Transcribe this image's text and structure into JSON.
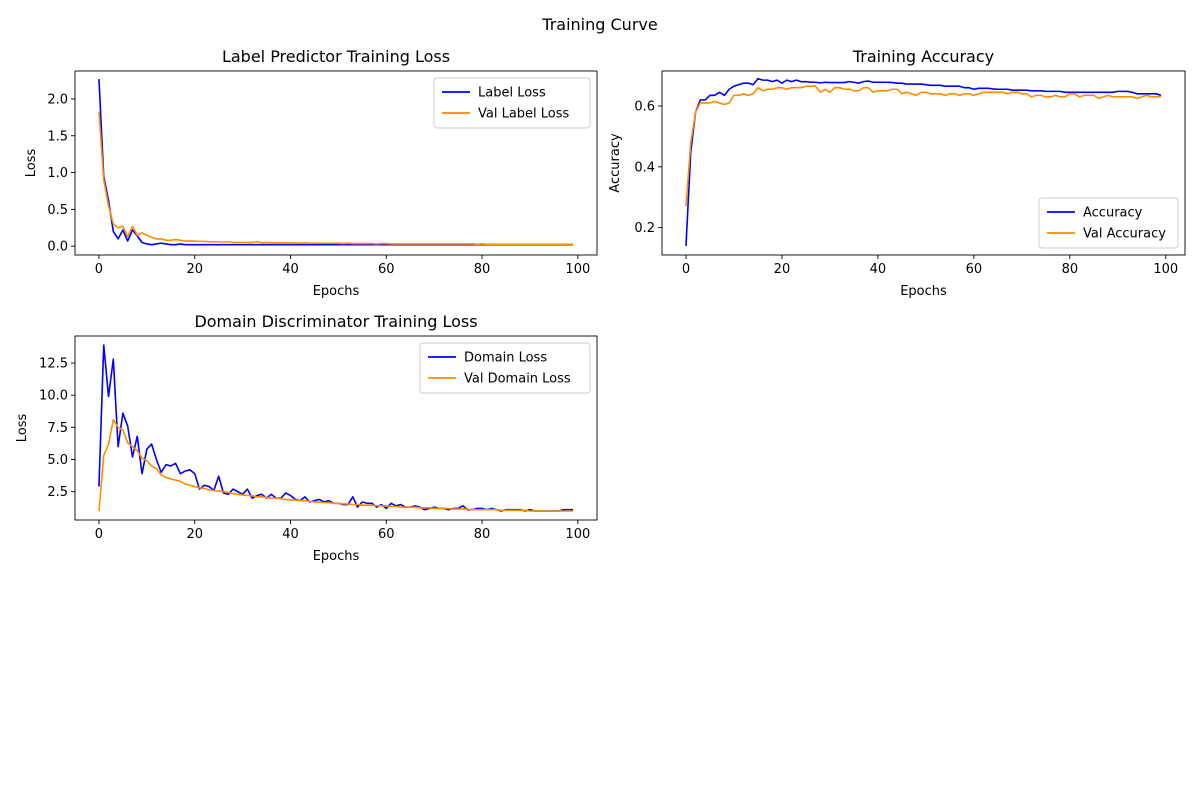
{
  "figure": {
    "suptitle": "Training Curve"
  },
  "colors": {
    "train": "#0000ff",
    "val": "#ff8c00"
  },
  "chart_data": [
    {
      "type": "line",
      "title": "Label Predictor Training Loss",
      "xlabel": "Epochs",
      "ylabel": "Loss",
      "xlim": [
        -5,
        104
      ],
      "ylim": [
        -0.12,
        2.38
      ],
      "xticks": [
        0,
        20,
        40,
        60,
        80,
        100
      ],
      "yticks": [
        0.0,
        0.5,
        1.0,
        1.5,
        2.0
      ],
      "ytick_labels": [
        "0.0",
        "0.5",
        "1.0",
        "1.5",
        "2.0"
      ],
      "legend_position": "top-right",
      "series": [
        {
          "name": "Label Loss",
          "color": "#0000ff",
          "x_step": 1,
          "values": [
            2.27,
            0.95,
            0.62,
            0.2,
            0.1,
            0.22,
            0.07,
            0.22,
            0.14,
            0.05,
            0.03,
            0.02,
            0.03,
            0.04,
            0.03,
            0.02,
            0.02,
            0.03,
            0.02,
            0.02,
            0.02,
            0.02,
            0.02,
            0.02,
            0.02,
            0.02,
            0.02,
            0.02,
            0.02,
            0.02,
            0.02,
            0.02,
            0.02,
            0.02,
            0.02,
            0.02,
            0.02,
            0.02,
            0.02,
            0.02,
            0.02,
            0.02,
            0.02,
            0.02,
            0.02,
            0.02,
            0.02,
            0.02,
            0.02,
            0.02,
            0.02,
            0.02,
            0.02,
            0.02,
            0.02,
            0.02,
            0.02,
            0.02,
            0.02,
            0.02,
            0.02,
            0.02,
            0.02,
            0.02,
            0.02,
            0.02,
            0.02,
            0.02,
            0.02,
            0.02,
            0.02,
            0.02,
            0.02,
            0.02,
            0.02,
            0.02,
            0.02,
            0.02,
            0.02,
            0.02,
            0.02,
            0.02,
            0.02,
            0.02,
            0.02,
            0.02,
            0.02,
            0.02,
            0.02,
            0.02,
            0.02,
            0.02,
            0.02,
            0.02,
            0.02,
            0.02,
            0.02,
            0.02,
            0.02,
            0.02
          ]
        },
        {
          "name": "Val Label Loss",
          "color": "#ff8c00",
          "x_step": 1,
          "values": [
            1.83,
            0.9,
            0.55,
            0.3,
            0.25,
            0.27,
            0.13,
            0.27,
            0.15,
            0.18,
            0.15,
            0.12,
            0.1,
            0.1,
            0.08,
            0.08,
            0.09,
            0.08,
            0.07,
            0.07,
            0.07,
            0.065,
            0.065,
            0.06,
            0.06,
            0.06,
            0.055,
            0.06,
            0.05,
            0.05,
            0.05,
            0.05,
            0.05,
            0.06,
            0.045,
            0.05,
            0.045,
            0.045,
            0.045,
            0.045,
            0.045,
            0.045,
            0.04,
            0.045,
            0.04,
            0.04,
            0.04,
            0.04,
            0.04,
            0.04,
            0.04,
            0.035,
            0.04,
            0.035,
            0.035,
            0.035,
            0.035,
            0.035,
            0.03,
            0.035,
            0.035,
            0.03,
            0.03,
            0.03,
            0.03,
            0.03,
            0.03,
            0.03,
            0.03,
            0.03,
            0.03,
            0.03,
            0.03,
            0.03,
            0.03,
            0.03,
            0.03,
            0.03,
            0.03,
            0.025,
            0.03,
            0.025,
            0.025,
            0.025,
            0.025,
            0.025,
            0.025,
            0.025,
            0.025,
            0.025,
            0.025,
            0.025,
            0.025,
            0.025,
            0.025,
            0.025,
            0.025,
            0.025,
            0.025,
            0.025
          ]
        }
      ]
    },
    {
      "type": "line",
      "title": "Training Accuracy",
      "xlabel": "Epochs",
      "ylabel": "Accuracy",
      "xlim": [
        -5,
        104
      ],
      "ylim": [
        0.11,
        0.715
      ],
      "xticks": [
        0,
        20,
        40,
        60,
        80,
        100
      ],
      "yticks": [
        0.2,
        0.4,
        0.6
      ],
      "ytick_labels": [
        "0.2",
        "0.4",
        "0.6"
      ],
      "legend_position": "lower-right",
      "series": [
        {
          "name": "Accuracy",
          "color": "#0000ff",
          "x_step": 1,
          "values": [
            0.14,
            0.45,
            0.58,
            0.62,
            0.62,
            0.635,
            0.635,
            0.645,
            0.635,
            0.655,
            0.665,
            0.67,
            0.675,
            0.675,
            0.67,
            0.69,
            0.685,
            0.685,
            0.68,
            0.685,
            0.675,
            0.685,
            0.68,
            0.685,
            0.68,
            0.68,
            0.678,
            0.678,
            0.676,
            0.678,
            0.677,
            0.677,
            0.677,
            0.677,
            0.68,
            0.678,
            0.675,
            0.68,
            0.682,
            0.678,
            0.678,
            0.678,
            0.678,
            0.677,
            0.675,
            0.675,
            0.672,
            0.672,
            0.672,
            0.672,
            0.67,
            0.668,
            0.668,
            0.668,
            0.665,
            0.665,
            0.665,
            0.665,
            0.66,
            0.66,
            0.655,
            0.658,
            0.658,
            0.658,
            0.656,
            0.655,
            0.655,
            0.655,
            0.652,
            0.652,
            0.652,
            0.652,
            0.65,
            0.65,
            0.65,
            0.648,
            0.648,
            0.648,
            0.648,
            0.645,
            0.645,
            0.645,
            0.645,
            0.645,
            0.645,
            0.645,
            0.645,
            0.645,
            0.645,
            0.645,
            0.648,
            0.648,
            0.648,
            0.645,
            0.64,
            0.64,
            0.64,
            0.64,
            0.64,
            0.635
          ]
        },
        {
          "name": "Val Accuracy",
          "color": "#ff8c00",
          "x_step": 1,
          "values": [
            0.27,
            0.48,
            0.58,
            0.61,
            0.61,
            0.61,
            0.615,
            0.61,
            0.605,
            0.61,
            0.635,
            0.635,
            0.64,
            0.635,
            0.64,
            0.66,
            0.65,
            0.655,
            0.655,
            0.66,
            0.66,
            0.655,
            0.66,
            0.66,
            0.66,
            0.665,
            0.665,
            0.665,
            0.645,
            0.655,
            0.645,
            0.66,
            0.66,
            0.655,
            0.655,
            0.65,
            0.65,
            0.66,
            0.66,
            0.645,
            0.65,
            0.65,
            0.65,
            0.655,
            0.655,
            0.64,
            0.645,
            0.64,
            0.635,
            0.645,
            0.645,
            0.64,
            0.64,
            0.64,
            0.635,
            0.64,
            0.64,
            0.635,
            0.64,
            0.64,
            0.635,
            0.64,
            0.645,
            0.645,
            0.645,
            0.645,
            0.645,
            0.64,
            0.645,
            0.645,
            0.64,
            0.64,
            0.63,
            0.635,
            0.635,
            0.63,
            0.63,
            0.635,
            0.63,
            0.63,
            0.64,
            0.64,
            0.63,
            0.635,
            0.635,
            0.635,
            0.625,
            0.63,
            0.635,
            0.63,
            0.63,
            0.63,
            0.63,
            0.63,
            0.625,
            0.63,
            0.635,
            0.63,
            0.63,
            0.63
          ]
        }
      ]
    },
    {
      "type": "line",
      "title": "Domain Discriminator Training Loss",
      "xlabel": "Epochs",
      "ylabel": "Loss",
      "xlim": [
        -5,
        104
      ],
      "ylim": [
        0.3,
        14.6
      ],
      "xticks": [
        0,
        20,
        40,
        60,
        80,
        100
      ],
      "yticks": [
        2.5,
        5.0,
        7.5,
        10.0,
        12.5
      ],
      "ytick_labels": [
        "2.5",
        "5.0",
        "7.5",
        "10.0",
        "12.5"
      ],
      "legend_position": "top-right",
      "series": [
        {
          "name": "Domain Loss",
          "color": "#0000ff",
          "x_step": 1,
          "values": [
            2.9,
            13.9,
            9.9,
            12.8,
            6.0,
            8.6,
            7.6,
            5.2,
            6.8,
            3.9,
            5.8,
            6.2,
            5.0,
            4.0,
            4.6,
            4.5,
            4.7,
            3.9,
            4.1,
            4.2,
            3.9,
            2.7,
            3.0,
            2.9,
            2.6,
            3.7,
            2.4,
            2.3,
            2.7,
            2.5,
            2.3,
            2.7,
            2.0,
            2.2,
            2.3,
            2.0,
            2.3,
            2.0,
            2.0,
            2.4,
            2.2,
            1.9,
            1.8,
            2.1,
            1.7,
            1.8,
            1.9,
            1.7,
            1.8,
            1.6,
            1.6,
            1.5,
            1.5,
            2.1,
            1.3,
            1.7,
            1.6,
            1.6,
            1.3,
            1.5,
            1.2,
            1.6,
            1.4,
            1.5,
            1.3,
            1.3,
            1.4,
            1.3,
            1.1,
            1.2,
            1.3,
            1.2,
            1.2,
            1.1,
            1.2,
            1.2,
            1.4,
            1.1,
            1.1,
            1.2,
            1.2,
            1.1,
            1.2,
            1.1,
            1.0,
            1.1,
            1.1,
            1.1,
            1.1,
            1.0,
            1.1,
            1.0,
            1.0,
            1.0,
            1.0,
            1.0,
            1.0,
            1.1,
            1.1,
            1.1
          ]
        },
        {
          "name": "Val Domain Loss",
          "color": "#ff8c00",
          "x_step": 1,
          "values": [
            1.0,
            5.3,
            6.2,
            8.1,
            7.5,
            7.3,
            6.3,
            6.0,
            5.7,
            5.1,
            4.9,
            4.5,
            4.3,
            3.8,
            3.6,
            3.5,
            3.4,
            3.3,
            3.1,
            3.0,
            2.9,
            2.8,
            2.75,
            2.65,
            2.6,
            2.55,
            2.5,
            2.45,
            2.35,
            2.3,
            2.25,
            2.2,
            2.2,
            2.1,
            2.1,
            2.05,
            2.0,
            2.0,
            1.95,
            1.9,
            1.85,
            1.85,
            1.8,
            1.8,
            1.75,
            1.7,
            1.7,
            1.65,
            1.65,
            1.6,
            1.6,
            1.55,
            1.55,
            1.5,
            1.5,
            1.45,
            1.45,
            1.45,
            1.4,
            1.4,
            1.4,
            1.35,
            1.35,
            1.3,
            1.3,
            1.3,
            1.3,
            1.25,
            1.25,
            1.25,
            1.2,
            1.2,
            1.2,
            1.2,
            1.15,
            1.15,
            1.15,
            1.15,
            1.1,
            1.1,
            1.1,
            1.1,
            1.1,
            1.1,
            1.05,
            1.05,
            1.05,
            1.05,
            1.05,
            1.05,
            1.0,
            1.0,
            1.0,
            1.0,
            1.0,
            1.0,
            1.0,
            1.0,
            1.0,
            1.0
          ]
        }
      ]
    }
  ]
}
